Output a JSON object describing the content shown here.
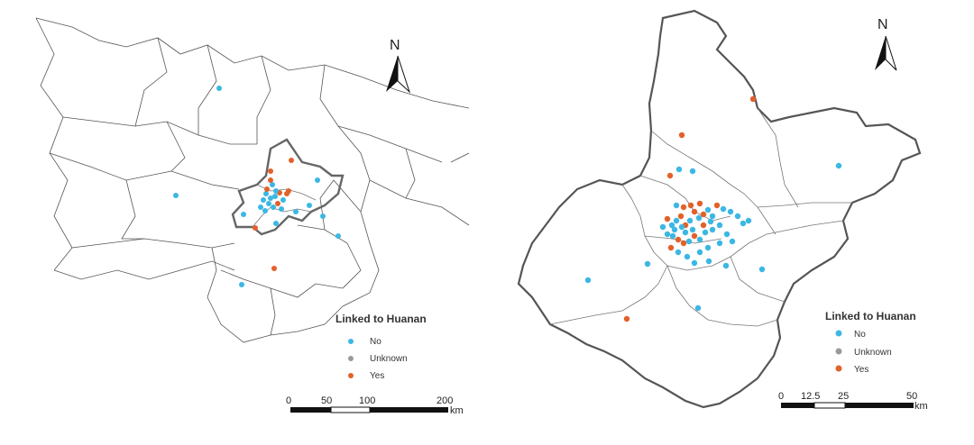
{
  "legend": {
    "title": "Linked to Huanan",
    "items": [
      {
        "label": "No",
        "color": "#3bb7e3"
      },
      {
        "label": "Unknown",
        "color": "#9a9a9a"
      },
      {
        "label": "Yes",
        "color": "#e2612a"
      }
    ]
  },
  "north_label": "N",
  "left_map": {
    "scale_ticks": [
      "0",
      "50",
      "100",
      "200"
    ],
    "scale_unit": "km"
  },
  "right_map": {
    "scale_ticks": [
      "0",
      "12.5",
      "25",
      "50"
    ],
    "scale_unit": "km"
  }
}
